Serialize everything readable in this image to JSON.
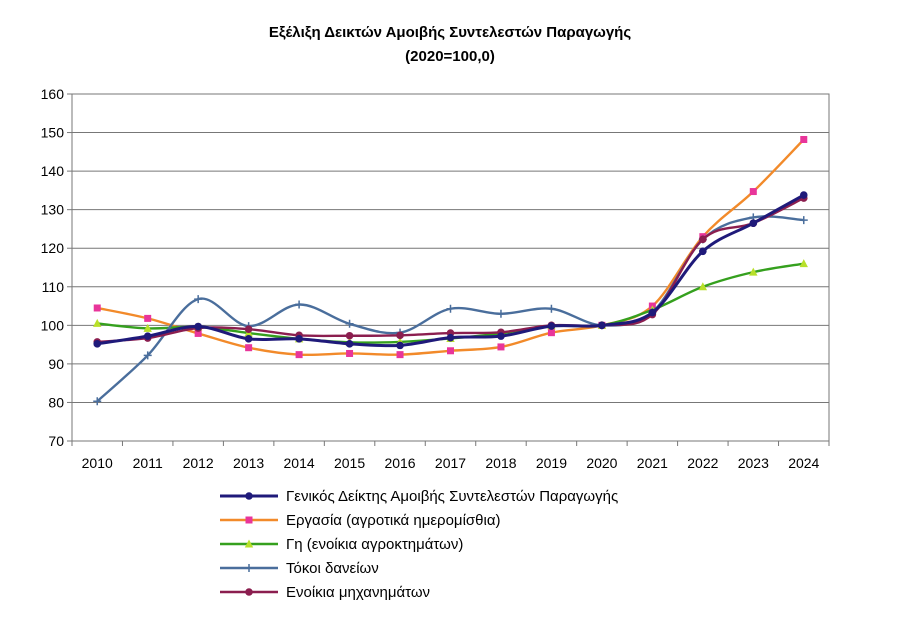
{
  "chart_data": {
    "type": "line",
    "title": "Εξέλιξη Δεικτών Αμοιβής Συντελεστών Παραγωγής",
    "subtitle": "(2020=100,0)",
    "x": [
      "2010",
      "2011",
      "2012",
      "2013",
      "2014",
      "2015",
      "2016",
      "2017",
      "2018",
      "2019",
      "2020",
      "2021",
      "2022",
      "2023",
      "2024"
    ],
    "ylim": [
      70,
      160
    ],
    "yticks": [
      "70",
      "80",
      "90",
      "100",
      "110",
      "120",
      "130",
      "140",
      "150",
      "160"
    ],
    "grid": true,
    "legend_position": "bottom",
    "series": [
      {
        "name": "Γενικός Δείκτης  Αμοιβής Συντελεστών Παραγωγής",
        "color": "#1f1a7a",
        "marker": "circle",
        "values": [
          95.2,
          97.2,
          99.7,
          96.5,
          96.5,
          95.2,
          94.8,
          96.8,
          97.2,
          99.8,
          100.0,
          103.3,
          119.2,
          126.5,
          133.8
        ]
      },
      {
        "name": "Εργασία (αγροτικά ημερομίσθια)",
        "color": "#f28a2a",
        "marker": "square",
        "values": [
          104.5,
          101.8,
          97.9,
          94.2,
          92.4,
          92.7,
          92.4,
          93.4,
          94.4,
          98.1,
          100.0,
          105.0,
          123.0,
          134.7,
          148.2
        ]
      },
      {
        "name": "Γη (ενοίκια αγροκτημάτων)",
        "color": "#35a01e",
        "marker": "triangle",
        "values": [
          100.5,
          99.2,
          99.6,
          98.0,
          96.5,
          95.6,
          95.7,
          96.6,
          97.9,
          99.9,
          100.0,
          104.0,
          110.0,
          113.8,
          116.0
        ]
      },
      {
        "name": "Τόκοι δανείων",
        "color": "#4a6e9c",
        "marker": "cross",
        "values": [
          80.3,
          92.2,
          106.8,
          99.8,
          105.4,
          100.4,
          98.1,
          104.3,
          103.0,
          104.3,
          100.0,
          103.4,
          122.3,
          128.0,
          127.3
        ]
      },
      {
        "name": "Ενοίκια μηχανημάτων",
        "color": "#8b1e4f",
        "marker": "circle",
        "values": [
          95.7,
          96.7,
          99.3,
          99.0,
          97.4,
          97.3,
          97.4,
          98.0,
          98.2,
          100.0,
          100.0,
          102.8,
          122.3,
          126.5,
          133.0
        ]
      }
    ]
  }
}
